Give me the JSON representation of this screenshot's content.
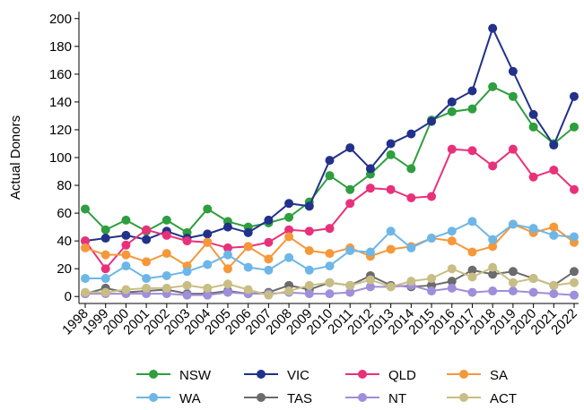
{
  "chart_data": {
    "type": "line",
    "ylabel": "Actual Donors",
    "x": [
      "1998",
      "1999",
      "2000",
      "2001",
      "2002",
      "2003",
      "2004",
      "2005",
      "2006",
      "2007",
      "2008",
      "2009",
      "2010",
      "2011",
      "2012",
      "2013",
      "2014",
      "2015",
      "2016",
      "2017",
      "2018",
      "2019",
      "2020",
      "2021",
      "2022"
    ],
    "ylim": [
      -5,
      205
    ],
    "yticks": [
      0,
      20,
      40,
      60,
      80,
      100,
      120,
      140,
      160,
      180,
      200
    ],
    "legend": "bottom",
    "series": [
      {
        "name": "NSW",
        "color": "#2e9e3e",
        "values": [
          63,
          48,
          55,
          47,
          55,
          46,
          63,
          54,
          50,
          53,
          57,
          68,
          87,
          77,
          88,
          102,
          92,
          127,
          133,
          135,
          151,
          144,
          122,
          110,
          122
        ]
      },
      {
        "name": "VIC",
        "color": "#22318a",
        "values": [
          40,
          42,
          44,
          41,
          47,
          42,
          45,
          50,
          46,
          55,
          67,
          65,
          98,
          107,
          92,
          110,
          117,
          126,
          140,
          148,
          193,
          162,
          131,
          109,
          144
        ]
      },
      {
        "name": "QLD",
        "color": "#e8317a",
        "values": [
          40,
          20,
          37,
          48,
          44,
          40,
          39,
          35,
          36,
          39,
          48,
          47,
          49,
          67,
          78,
          77,
          71,
          72,
          106,
          105,
          94,
          106,
          86,
          91,
          77
        ]
      },
      {
        "name": "SA",
        "color": "#f5983a",
        "values": [
          35,
          30,
          30,
          25,
          31,
          22,
          39,
          20,
          36,
          27,
          43,
          33,
          31,
          35,
          29,
          34,
          36,
          42,
          40,
          32,
          36,
          52,
          46,
          50,
          39
        ]
      },
      {
        "name": "WA",
        "color": "#6db6e8",
        "values": [
          13,
          13,
          22,
          13,
          15,
          18,
          23,
          30,
          21,
          19,
          28,
          19,
          22,
          33,
          32,
          47,
          35,
          42,
          47,
          54,
          41,
          52,
          49,
          44,
          43
        ]
      },
      {
        "name": "TAS",
        "color": "#6b6b6b",
        "values": [
          2,
          6,
          3,
          4,
          5,
          2,
          2,
          4,
          2,
          3,
          8,
          5,
          10,
          8,
          15,
          8,
          7,
          8,
          11,
          19,
          16,
          18,
          13,
          8,
          18
        ]
      },
      {
        "name": "NT",
        "color": "#9f8ed9",
        "values": [
          2,
          2,
          2,
          2,
          2,
          1,
          1,
          3,
          2,
          2,
          3,
          2,
          2,
          3,
          7,
          7,
          8,
          4,
          6,
          3,
          4,
          4,
          3,
          2,
          1
        ]
      },
      {
        "name": "ACT",
        "color": "#c8be85",
        "values": [
          3,
          3,
          5,
          6,
          6,
          8,
          6,
          9,
          5,
          1,
          4,
          8,
          10,
          8,
          12,
          7,
          11,
          13,
          20,
          14,
          21,
          10,
          13,
          8,
          10
        ]
      }
    ]
  }
}
